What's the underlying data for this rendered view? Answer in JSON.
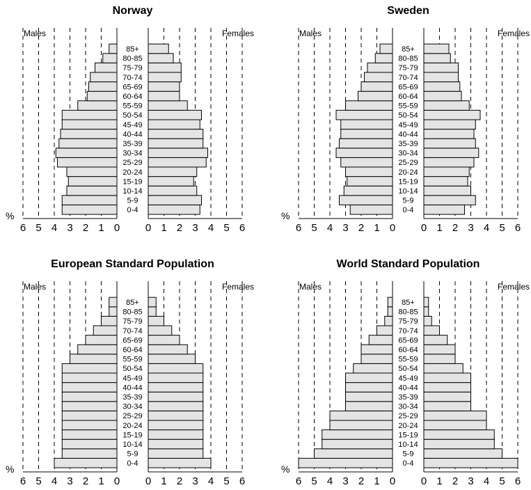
{
  "chart_data": [
    {
      "type": "bar",
      "orientation": "horizontal-population-pyramid",
      "title": "Norway",
      "left_label": "Males",
      "right_label": "Females",
      "unit_label": "%",
      "age_groups": [
        "0-4",
        "5-9",
        "10-14",
        "15-19",
        "20-24",
        "25-29",
        "30-34",
        "35-39",
        "40-44",
        "45-49",
        "50-54",
        "55-59",
        "60-64",
        "65-69",
        "70-74",
        "75-79",
        "80-85",
        "85+"
      ],
      "xlim": [
        0,
        6
      ],
      "ticks": [
        0,
        1,
        2,
        3,
        4,
        5,
        6
      ],
      "grid": "dashed vertical lines at 1-6",
      "series": [
        {
          "name": "Males",
          "values": [
            3.5,
            3.5,
            3.2,
            3.1,
            3.2,
            3.8,
            3.9,
            3.7,
            3.6,
            3.5,
            3.5,
            2.5,
            1.9,
            1.8,
            1.7,
            1.4,
            0.9,
            0.5
          ]
        },
        {
          "name": "Females",
          "values": [
            3.3,
            3.4,
            3.1,
            2.9,
            3.1,
            3.7,
            3.8,
            3.5,
            3.5,
            3.3,
            3.4,
            2.5,
            2.0,
            2.0,
            2.1,
            2.1,
            1.6,
            1.3
          ]
        }
      ]
    },
    {
      "type": "bar",
      "orientation": "horizontal-population-pyramid",
      "title": "Sweden",
      "left_label": "Males",
      "right_label": "Females",
      "unit_label": "%",
      "age_groups": [
        "0-4",
        "5-9",
        "10-14",
        "15-19",
        "20-24",
        "25-29",
        "30-34",
        "35-39",
        "40-44",
        "45-49",
        "50-54",
        "55-59",
        "60-64",
        "65-69",
        "70-74",
        "75-79",
        "80-85",
        "85+"
      ],
      "xlim": [
        0,
        6
      ],
      "ticks": [
        0,
        1,
        2,
        3,
        4,
        5,
        6
      ],
      "grid": "dashed vertical lines at 1-6",
      "series": [
        {
          "name": "Males",
          "values": [
            2.7,
            3.4,
            3.1,
            2.9,
            3.0,
            3.3,
            3.6,
            3.4,
            3.3,
            3.3,
            3.6,
            3.0,
            2.2,
            2.0,
            1.8,
            1.6,
            1.1,
            0.8
          ]
        },
        {
          "name": "Females",
          "values": [
            2.6,
            3.3,
            3.0,
            2.8,
            2.9,
            3.2,
            3.5,
            3.3,
            3.2,
            3.3,
            3.6,
            2.9,
            2.4,
            2.3,
            2.2,
            2.2,
            1.7,
            1.6
          ]
        }
      ]
    },
    {
      "type": "bar",
      "orientation": "horizontal-population-pyramid",
      "title": "European Standard Population",
      "left_label": "Males",
      "right_label": "Females",
      "unit_label": "%",
      "age_groups": [
        "0-4",
        "5-9",
        "10-14",
        "15-19",
        "20-24",
        "25-29",
        "30-34",
        "35-39",
        "40-44",
        "45-49",
        "50-54",
        "55-59",
        "60-64",
        "65-69",
        "70-74",
        "75-79",
        "80-85",
        "85+"
      ],
      "xlim": [
        0,
        6
      ],
      "ticks": [
        0,
        1,
        2,
        3,
        4,
        5,
        6
      ],
      "grid": "dashed vertical lines at 1-6",
      "series": [
        {
          "name": "Males",
          "values": [
            4.0,
            3.5,
            3.5,
            3.5,
            3.5,
            3.5,
            3.5,
            3.5,
            3.5,
            3.5,
            3.5,
            3.0,
            2.5,
            2.0,
            1.5,
            1.0,
            0.5,
            0.5
          ]
        },
        {
          "name": "Females",
          "values": [
            4.0,
            3.5,
            3.5,
            3.5,
            3.5,
            3.5,
            3.5,
            3.5,
            3.5,
            3.5,
            3.5,
            3.0,
            2.5,
            2.0,
            1.5,
            1.0,
            0.5,
            0.5
          ]
        }
      ]
    },
    {
      "type": "bar",
      "orientation": "horizontal-population-pyramid",
      "title": "World Standard Population",
      "left_label": "Males",
      "right_label": "Females",
      "unit_label": "%",
      "age_groups": [
        "0-4",
        "5-9",
        "10-14",
        "15-19",
        "20-24",
        "25-29",
        "30-34",
        "35-39",
        "40-44",
        "45-49",
        "50-54",
        "55-59",
        "60-64",
        "65-69",
        "70-74",
        "75-79",
        "80-85",
        "85+"
      ],
      "xlim": [
        0,
        6
      ],
      "ticks": [
        0,
        1,
        2,
        3,
        4,
        5,
        6
      ],
      "grid": "dashed vertical lines at 1-6",
      "series": [
        {
          "name": "Males",
          "values": [
            6.0,
            5.0,
            4.5,
            4.5,
            4.0,
            4.0,
            3.0,
            3.0,
            3.0,
            3.0,
            2.5,
            2.0,
            2.0,
            1.5,
            1.0,
            0.5,
            0.3,
            0.3
          ]
        },
        {
          "name": "Females",
          "values": [
            6.0,
            5.0,
            4.5,
            4.5,
            4.0,
            4.0,
            3.0,
            3.0,
            3.0,
            3.0,
            2.5,
            2.0,
            2.0,
            1.5,
            1.0,
            0.5,
            0.3,
            0.3
          ]
        }
      ]
    }
  ],
  "colors": {
    "bar_fill": "#e4e4e4",
    "bar_stroke": "#000000"
  }
}
